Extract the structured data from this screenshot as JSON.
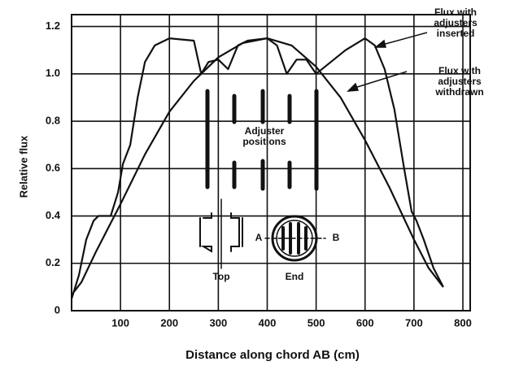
{
  "chart_data": {
    "type": "line",
    "xlabel": "Distance along chord AB (cm)",
    "ylabel": "Relative flux",
    "xlim": [
      0,
      815
    ],
    "ylim": [
      0,
      1.25
    ],
    "xticks": [
      100,
      200,
      300,
      400,
      500,
      600,
      700,
      800
    ],
    "yticks": [
      0,
      0.2,
      0.4,
      0.6,
      0.8,
      {
        "value": 1,
        "label": "1.0"
      },
      1.2
    ],
    "grid": true,
    "series": [
      {
        "name": "Flux with adjusters inserted",
        "color": "#111111",
        "x": [
          0,
          15,
          30,
          45,
          55,
          80,
          95,
          105,
          120,
          135,
          150,
          170,
          200,
          250,
          265,
          280,
          300,
          320,
          340,
          360,
          400,
          420,
          440,
          460,
          480,
          500,
          530,
          560,
          600,
          620,
          640,
          660,
          680,
          695,
          705,
          720,
          740,
          760
        ],
        "values": [
          0.05,
          0.15,
          0.3,
          0.38,
          0.4,
          0.4,
          0.5,
          0.62,
          0.7,
          0.9,
          1.05,
          1.12,
          1.15,
          1.14,
          1.0,
          1.05,
          1.06,
          1.02,
          1.12,
          1.14,
          1.15,
          1.12,
          1.0,
          1.06,
          1.06,
          1.0,
          1.05,
          1.1,
          1.15,
          1.12,
          1.02,
          0.85,
          0.6,
          0.42,
          0.38,
          0.3,
          0.18,
          0.1
        ]
      },
      {
        "name": "Flux with adjusters withdrawn",
        "color": "#111111",
        "x": [
          5,
          20,
          50,
          100,
          150,
          200,
          250,
          300,
          350,
          400,
          450,
          500,
          550,
          600,
          650,
          700,
          730,
          760
        ],
        "values": [
          0.08,
          0.12,
          0.25,
          0.45,
          0.66,
          0.84,
          0.97,
          1.07,
          1.13,
          1.15,
          1.12,
          1.03,
          0.9,
          0.72,
          0.52,
          0.3,
          0.18,
          0.1
        ]
      }
    ],
    "annotations": [
      {
        "lines": [
          "Flux with",
          "adjusters",
          "inserted"
        ]
      },
      {
        "lines": [
          "Flux with",
          "adjusters",
          "withdrawn"
        ]
      },
      {
        "lines": [
          "Adjuster",
          "positions"
        ]
      },
      {
        "lines": [
          "A"
        ]
      },
      {
        "lines": [
          "B"
        ]
      },
      {
        "lines": [
          "Top"
        ]
      },
      {
        "lines": [
          "End"
        ]
      }
    ]
  }
}
